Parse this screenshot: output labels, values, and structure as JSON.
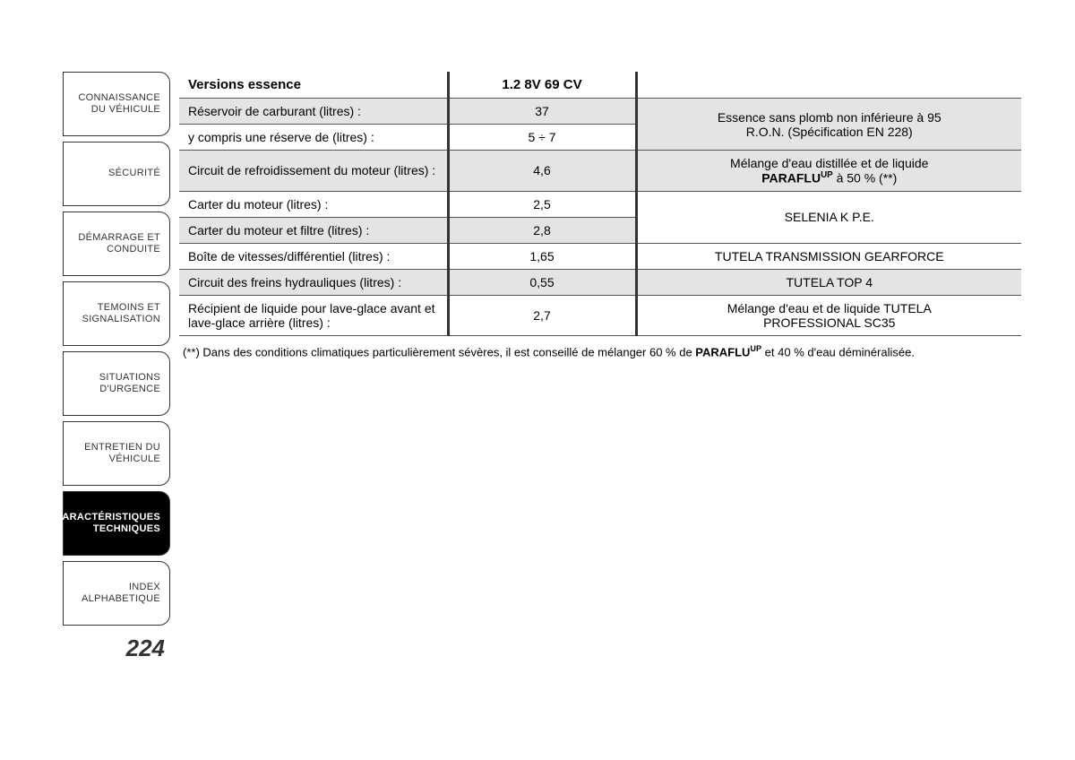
{
  "sidebar": {
    "tabs": [
      {
        "label": "CONNAISSANCE DU VÉHICULE",
        "active": false
      },
      {
        "label": "SÉCURITÉ",
        "active": false
      },
      {
        "label": "DÉMARRAGE ET CONDUITE",
        "active": false
      },
      {
        "label": "TEMOINS ET SIGNALISATION",
        "active": false
      },
      {
        "label": "SITUATIONS D'URGENCE",
        "active": false
      },
      {
        "label": "ENTRETIEN DU VÉHICULE",
        "active": false
      },
      {
        "label": "CARACTÉRISTIQUES TECHNIQUES",
        "active": true
      },
      {
        "label": "INDEX ALPHABETIQUE",
        "active": false
      }
    ],
    "page_number": "224"
  },
  "table": {
    "header": {
      "col1": "Versions essence",
      "col2": "1.2 8V 69 CV",
      "col3": ""
    },
    "rows": [
      {
        "col1": "Réservoir de carburant (litres) :",
        "col2": "37",
        "col3_line1": "Essence sans plomb non inférieure à 95",
        "col3_line2": "R.O.N. (Spécification EN 228)",
        "rowspan": 2,
        "shade": true
      },
      {
        "col1": "y compris une réserve de (litres) :",
        "col2": "5 ÷ 7",
        "shade": false
      },
      {
        "col1": "Circuit de refroidissement du moteur (litres) :",
        "col2": "4,6",
        "col3_pre": "Mélange d'eau distillée et de liquide ",
        "col3_bold": "PARAFLU",
        "col3_sup": "UP",
        "col3_post": " à 50 % (**)",
        "shade": true
      },
      {
        "col1": "Carter du moteur (litres) :",
        "col2": "2,5",
        "col3": "SELENIA K P.E.",
        "rowspan": 2,
        "shade": false
      },
      {
        "col1": "Carter du moteur et filtre (litres) :",
        "col2": "2,8",
        "shade": true
      },
      {
        "col1": "Boîte de vitesses/différentiel (litres) :",
        "col2": "1,65",
        "col3": "TUTELA TRANSMISSION GEARFORCE",
        "shade": false
      },
      {
        "col1": "Circuit des freins hydrauliques (litres) :",
        "col2": "0,55",
        "col3": "TUTELA TOP 4",
        "shade": true
      },
      {
        "col1": "Récipient de liquide pour lave-glace avant et lave-glace arrière (litres) :",
        "col2": "2,7",
        "col3_line1": "Mélange d'eau et de liquide TUTELA",
        "col3_line2": "PROFESSIONAL SC35",
        "shade": false
      }
    ]
  },
  "footnote": {
    "pre": "(**) Dans des conditions climatiques particulièrement sévères, il est conseillé de mélanger 60 % de ",
    "bold": "PARAFLU",
    "sup": "UP",
    "post": " et 40 % d'eau déminéralisée."
  },
  "colors": {
    "border": "#333333",
    "shade": "#e4e4e4",
    "text": "#333333",
    "active_bg": "#000000",
    "active_fg": "#ffffff"
  }
}
